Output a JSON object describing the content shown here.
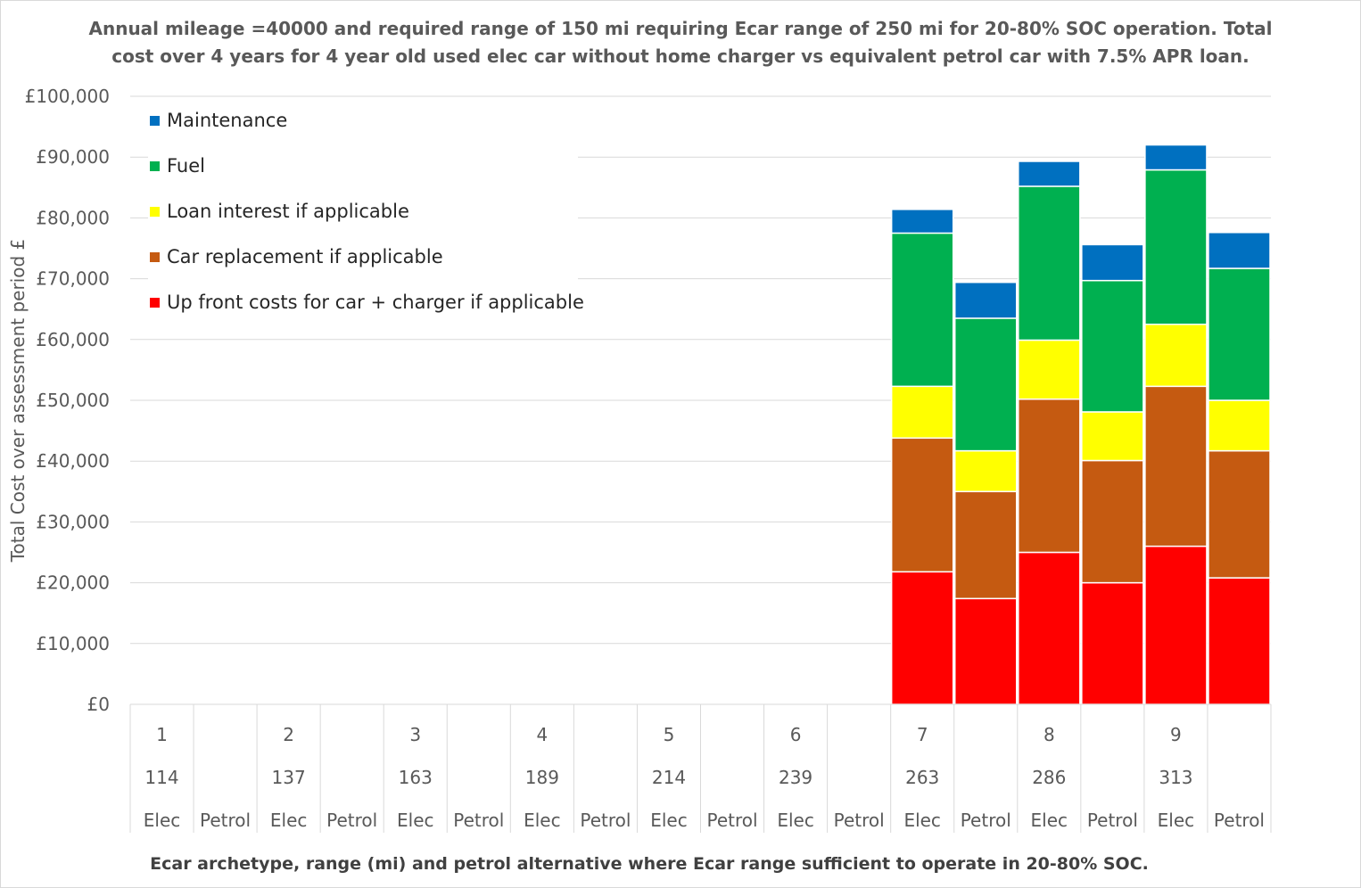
{
  "chart_data": {
    "type": "bar",
    "stacked": true,
    "title": "Annual mileage =40000 and required range of 150 mi requiring Ecar range of 250 mi for 20-80% SOC operation. Total cost over 4 years for 4 year old used elec car without home charger vs equivalent petrol car with 7.5% APR loan.",
    "title_lines": [
      "Annual mileage =40000 and required range of 150 mi requiring Ecar range of 250 mi for 20-80% SOC operation. Total",
      "cost over 4 years for 4 year old used elec car without home charger vs equivalent petrol car with 7.5% APR loan."
    ],
    "xlabel": "Ecar archetype, range (mi) and petrol alternative where Ecar range sufficient to operate in 20-80% SOC.",
    "ylabel": "Total Cost over assessment period £",
    "ylim": [
      0,
      100000
    ],
    "yticks": [
      "£0",
      "£10,000",
      "£20,000",
      "£30,000",
      "£40,000",
      "£50,000",
      "£60,000",
      "£70,000",
      "£80,000",
      "£90,000",
      "£100,000"
    ],
    "grid": true,
    "legend_position": "top-left",
    "groups": [
      {
        "archetype": "1",
        "range": "114"
      },
      {
        "archetype": "2",
        "range": "137"
      },
      {
        "archetype": "3",
        "range": "163"
      },
      {
        "archetype": "4",
        "range": "189"
      },
      {
        "archetype": "5",
        "range": "214"
      },
      {
        "archetype": "6",
        "range": "239"
      },
      {
        "archetype": "7",
        "range": "263"
      },
      {
        "archetype": "8",
        "range": "286"
      },
      {
        "archetype": "9",
        "range": "313"
      }
    ],
    "subcategories": [
      "Elec",
      "Petrol"
    ],
    "categories": [
      "1 Elec",
      "1 Petrol",
      "2 Elec",
      "2 Petrol",
      "3 Elec",
      "3 Petrol",
      "4 Elec",
      "4 Petrol",
      "5 Elec",
      "5 Petrol",
      "6 Elec",
      "6 Petrol",
      "7 Elec",
      "7 Petrol",
      "8 Elec",
      "8 Petrol",
      "9 Elec",
      "9 Petrol"
    ],
    "series": [
      {
        "name": "Up front costs for car + charger if applicable",
        "color": "#ff0000",
        "values": [
          0,
          0,
          0,
          0,
          0,
          0,
          0,
          0,
          0,
          0,
          0,
          0,
          21800,
          17400,
          25000,
          20000,
          26000,
          20800
        ]
      },
      {
        "name": "Car replacement if applicable",
        "color": "#c55a11",
        "values": [
          0,
          0,
          0,
          0,
          0,
          0,
          0,
          0,
          0,
          0,
          0,
          0,
          22000,
          17600,
          25200,
          20100,
          26300,
          20900
        ]
      },
      {
        "name": "Loan interest if applicable",
        "color": "#ffff00",
        "values": [
          0,
          0,
          0,
          0,
          0,
          0,
          0,
          0,
          0,
          0,
          0,
          0,
          8500,
          6700,
          9700,
          8000,
          10200,
          8300
        ]
      },
      {
        "name": "Fuel",
        "color": "#00b050",
        "values": [
          0,
          0,
          0,
          0,
          0,
          0,
          0,
          0,
          0,
          0,
          0,
          0,
          25200,
          21800,
          25300,
          21600,
          25400,
          21700
        ]
      },
      {
        "name": "Maintenance",
        "color": "#0070c0",
        "values": [
          0,
          0,
          0,
          0,
          0,
          0,
          0,
          0,
          0,
          0,
          0,
          0,
          3900,
          5900,
          4100,
          5900,
          4100,
          5900
        ]
      }
    ],
    "legend_order": [
      "Maintenance",
      "Fuel",
      "Loan interest if applicable",
      "Car replacement if applicable",
      "Up front costs for car + charger if applicable"
    ]
  }
}
